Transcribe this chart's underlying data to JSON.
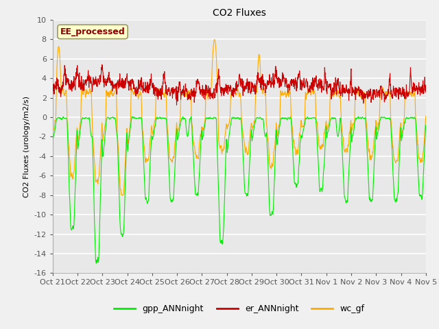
{
  "title": "CO2 Fluxes",
  "ylabel": "CO2 Fluxes (urology/m2/s)",
  "ylim": [
    -16,
    10
  ],
  "yticks": [
    -16,
    -14,
    -12,
    -10,
    -8,
    -6,
    -4,
    -2,
    0,
    2,
    4,
    6,
    8,
    10
  ],
  "bg_color": "#f0f0f0",
  "plot_bg": "#e8e8e8",
  "line_colors": {
    "gpp": "#00ee00",
    "er": "#cc0000",
    "wc": "#ffaa00"
  },
  "legend_label": "EE_processed",
  "xtick_labels": [
    "Oct 21",
    "Oct 22",
    "Oct 23",
    "Oct 24",
    "Oct 25",
    "Oct 26",
    "Oct 27",
    "Oct 28",
    "Oct 29",
    "Oct 30",
    "Oct 31",
    "Nov 1",
    "Nov 2",
    "Nov 3",
    "Nov 4",
    "Nov 5"
  ],
  "n_points": 1440,
  "figsize": [
    6.4,
    4.8
  ],
  "dpi": 100
}
